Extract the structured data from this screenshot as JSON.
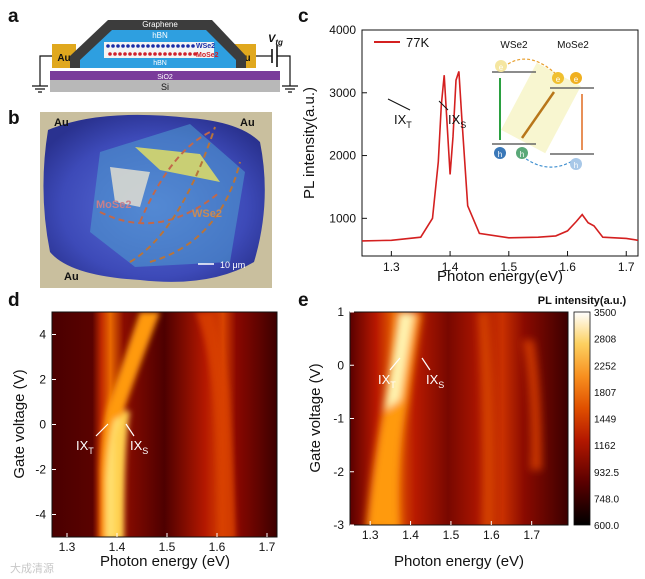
{
  "panel_labels": {
    "a": "a",
    "b": "b",
    "c": "c",
    "d": "d",
    "e": "e"
  },
  "panel_a": {
    "layers": [
      "Graphene",
      "hBN",
      "WSe2",
      "MoSe2",
      "hBN",
      "SiO2",
      "Si"
    ],
    "electrode_left": "Au",
    "electrode_right": "Au",
    "gate_label": "V",
    "gate_sub": "tg"
  },
  "panel_b": {
    "au_labels": [
      "Au",
      "Au",
      "Au"
    ],
    "mose2_label": "MoSe2",
    "wse2_label": "WSe2",
    "scalebar": "10 μm"
  },
  "panel_c": {
    "ylabel": "PL intensity(a.u.)",
    "xlabel": "Photon energy(eV)",
    "legend": "77K",
    "peak_left": "IX",
    "peak_left_sub": "T",
    "peak_right": "IX",
    "peak_right_sub": "S",
    "inset_left": "WSe2",
    "inset_right": "MoSe2",
    "inset_e": "e",
    "inset_h": "h"
  },
  "panel_d": {
    "ylabel": "Gate voltage (V)",
    "xlabel": "Photon energy (eV)",
    "ann_left": "IX",
    "ann_left_sub": "T",
    "ann_right": "IX",
    "ann_right_sub": "S"
  },
  "panel_e": {
    "ylabel": "Gate voltage (V)",
    "xlabel": "Photon energy (eV)",
    "ann_left": "IX",
    "ann_left_sub": "T",
    "ann_right": "IX",
    "ann_right_sub": "S",
    "colorbar_title": "PL intensity(a.u.)",
    "colorbar_ticks": [
      "3500",
      "2808",
      "2252",
      "1807",
      "1449",
      "1162",
      "932.5",
      "748.0",
      "600.0"
    ]
  },
  "watermark": "大成清源",
  "chart_data": [
    {
      "type": "line",
      "title": "",
      "legend": [
        "77K"
      ],
      "xlabel": "Photon energy(eV)",
      "ylabel": "PL intensity(a.u.)",
      "xlim": [
        1.25,
        1.72
      ],
      "ylim": [
        400,
        4000
      ],
      "xticks": [
        "1.3",
        "1.4",
        "1.5",
        "1.6",
        "1.7"
      ],
      "yticks": [
        "1000",
        "2000",
        "3000",
        "4000"
      ],
      "x": [
        1.25,
        1.3,
        1.35,
        1.37,
        1.38,
        1.385,
        1.39,
        1.395,
        1.4,
        1.405,
        1.41,
        1.415,
        1.42,
        1.43,
        1.45,
        1.5,
        1.55,
        1.58,
        1.6,
        1.615,
        1.625,
        1.635,
        1.645,
        1.66,
        1.7,
        1.72
      ],
      "series": [
        {
          "name": "77K",
          "values": [
            640,
            650,
            700,
            1000,
            1900,
            2800,
            3280,
            2500,
            1700,
            2300,
            3200,
            3340,
            2600,
            1200,
            760,
            690,
            700,
            720,
            800,
            950,
            1060,
            930,
            880,
            700,
            680,
            650
          ]
        }
      ],
      "annotations": [
        "IXT",
        "IXS"
      ]
    },
    {
      "type": "heatmap",
      "xlabel": "Photon energy (eV)",
      "ylabel": "Gate voltage (V)",
      "xlim": [
        1.27,
        1.72
      ],
      "ylim": [
        -5,
        5
      ],
      "xticks": [
        "1.3",
        "1.4",
        "1.5",
        "1.6",
        "1.7"
      ],
      "yticks": [
        "4",
        "2",
        "0",
        "-2",
        "-4"
      ],
      "annotations": [
        "IXT",
        "IXS"
      ]
    },
    {
      "type": "heatmap",
      "xlabel": "Photon energy (eV)",
      "ylabel": "Gate voltage (V)",
      "xlim": [
        1.25,
        1.79
      ],
      "ylim": [
        -3,
        1
      ],
      "xticks": [
        "1.3",
        "1.4",
        "1.5",
        "1.6",
        "1.7"
      ],
      "yticks": [
        "1",
        "0",
        "-1",
        "-2",
        "-3"
      ],
      "colorbar_range": [
        600,
        3500
      ],
      "annotations": [
        "IXT",
        "IXS"
      ]
    }
  ]
}
